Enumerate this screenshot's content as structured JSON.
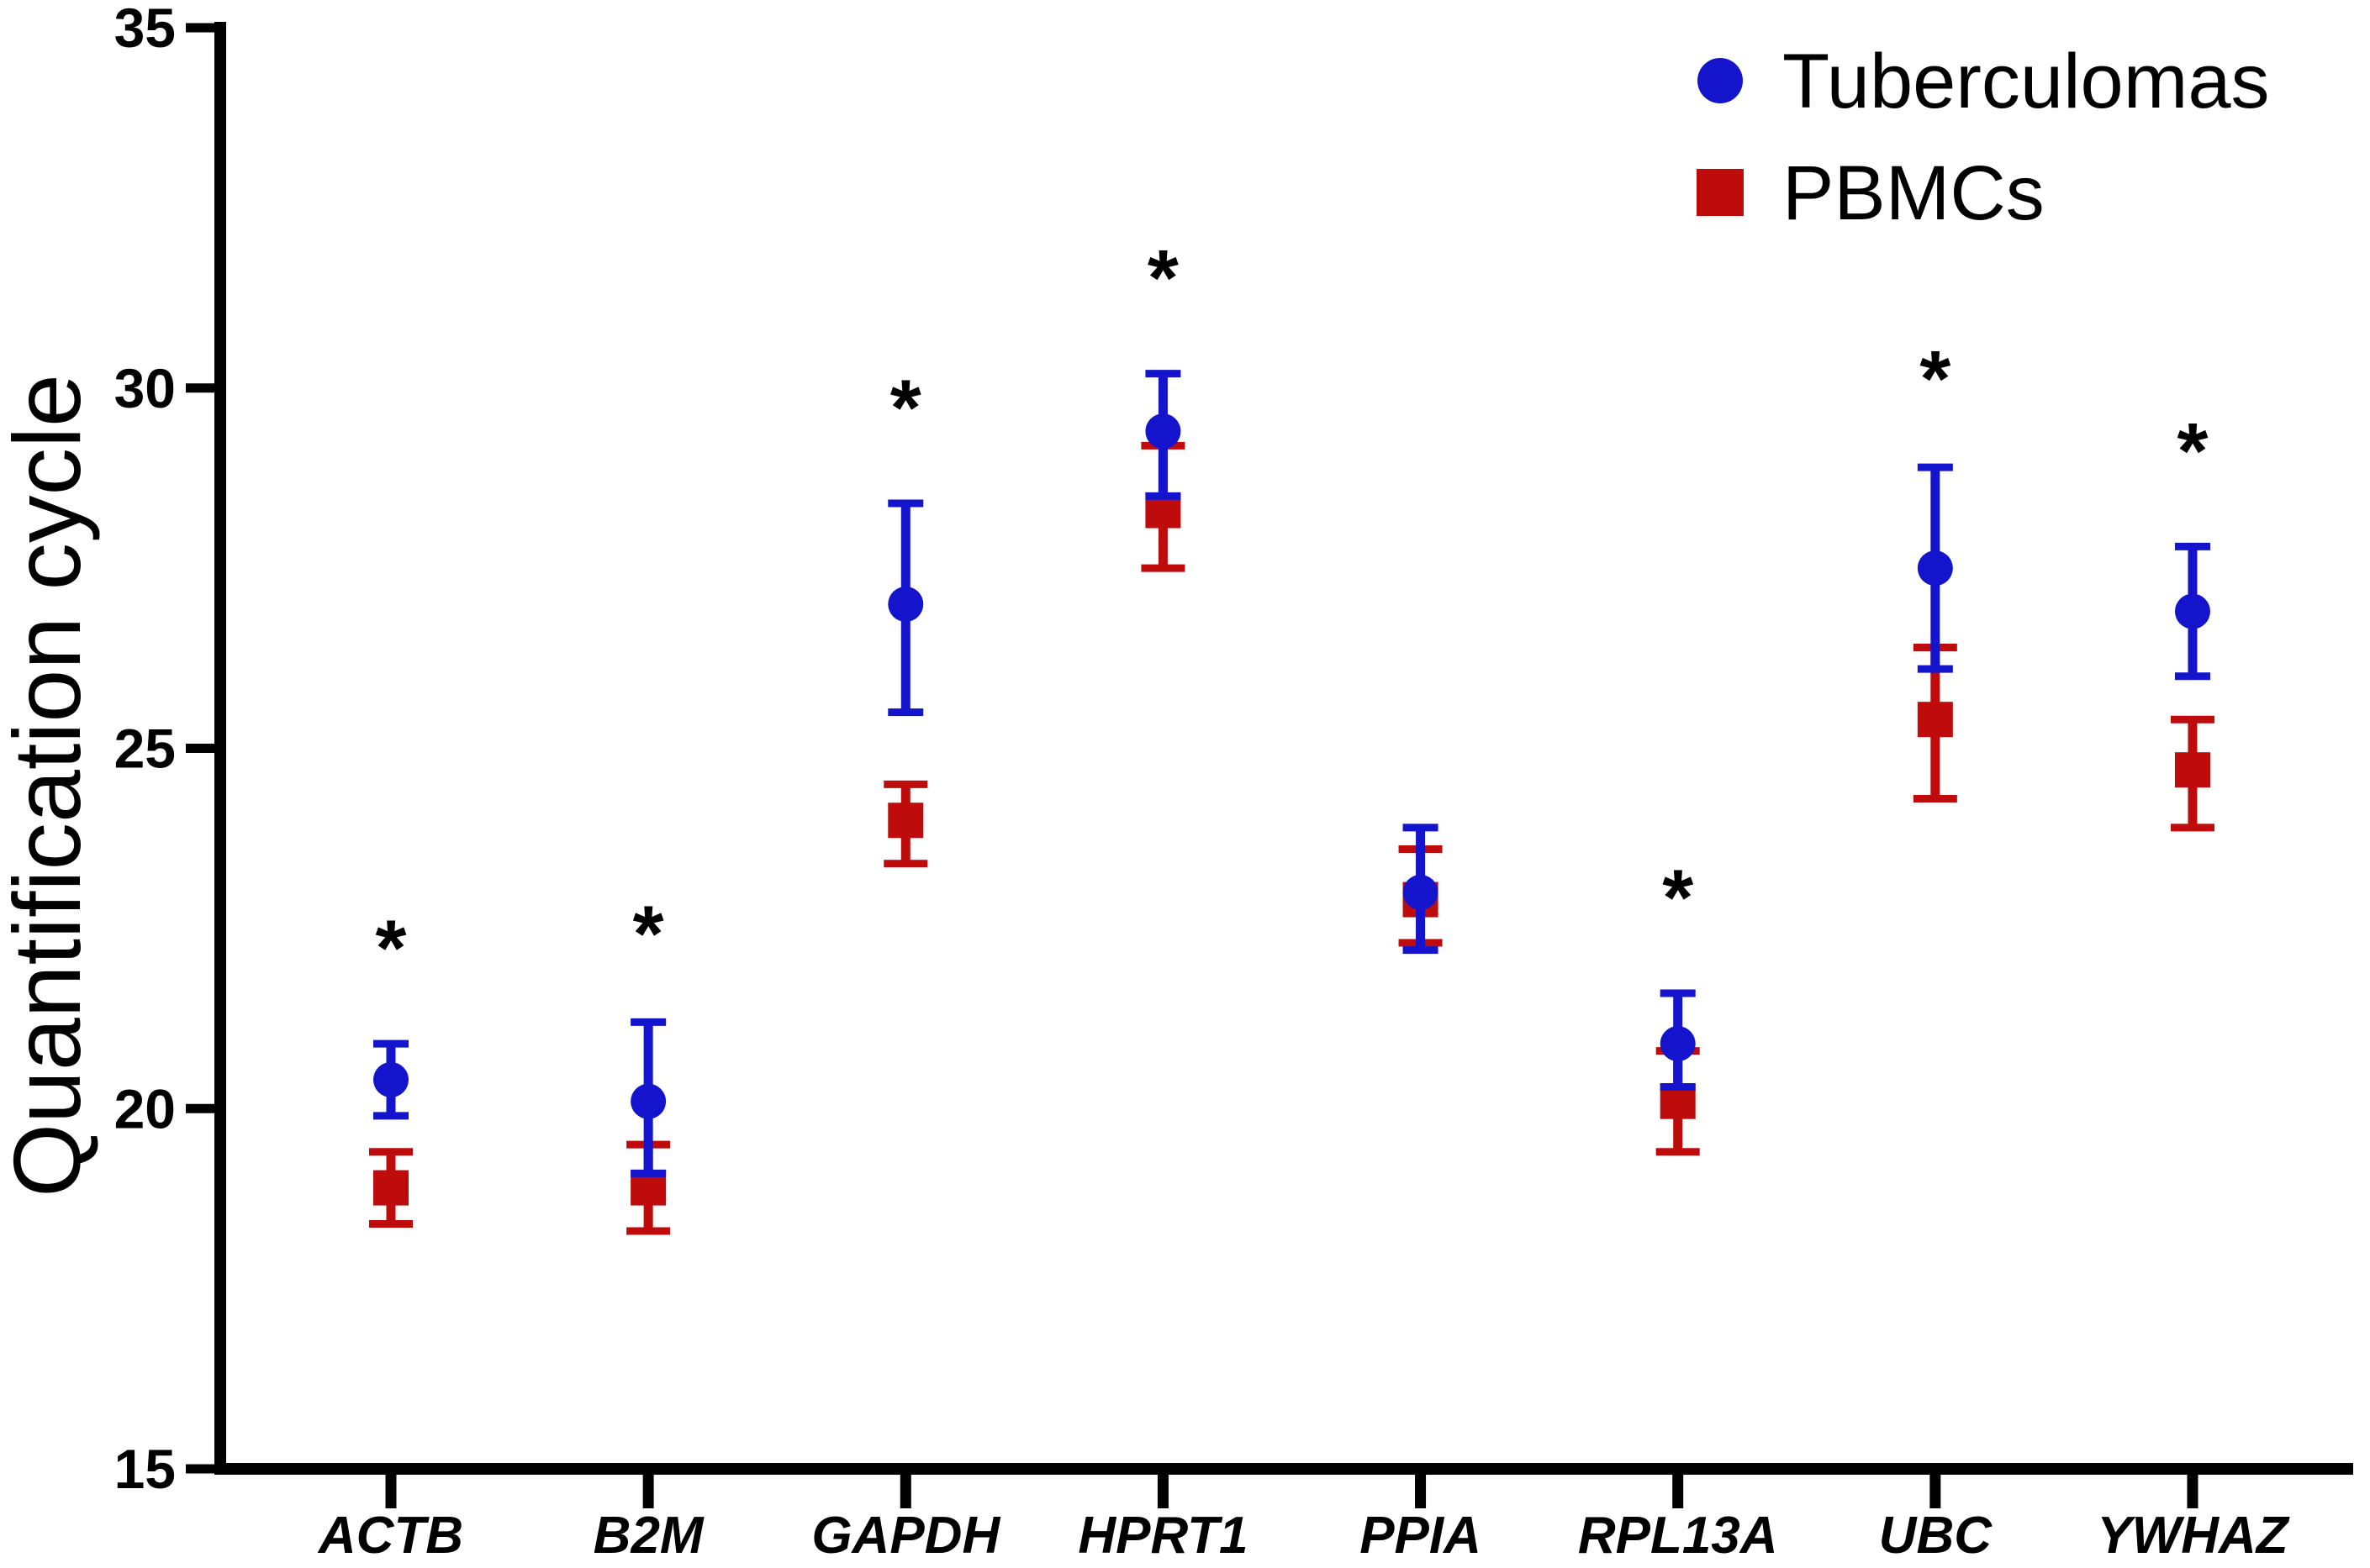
{
  "page": {
    "background": "#FFFFFF",
    "axis_color": "#000000"
  },
  "legend": {
    "position": "top-right",
    "items": [
      {
        "label": "Tuberculomas",
        "marker": "circle",
        "color": "#1414CC"
      },
      {
        "label": "PBMCs",
        "marker": "square",
        "color": "#BE0C0C"
      }
    ]
  },
  "chart_data": {
    "type": "scatter",
    "title": "",
    "xlabel": "",
    "ylabel": "Quantification cycle",
    "ylim": [
      15,
      35
    ],
    "yticks": [
      35,
      30,
      25,
      20,
      15
    ],
    "grid": false,
    "legend_position": "top-right",
    "categories": [
      "ACTB",
      "B2M",
      "GAPDH",
      "HPRT1",
      "PPIA",
      "RPL13A",
      "UBC",
      "YWHAZ"
    ],
    "series": [
      {
        "name": "Tuberculomas",
        "marker": "circle",
        "color": "#1414CC",
        "values": [
          20.4,
          20.1,
          27.0,
          29.4,
          23.0,
          20.9,
          27.5,
          26.9
        ],
        "err_upper": [
          20.9,
          21.2,
          28.4,
          30.2,
          23.9,
          21.6,
          28.9,
          27.8
        ],
        "err_lower": [
          19.9,
          19.1,
          25.5,
          28.5,
          22.2,
          20.3,
          26.1,
          26.0
        ]
      },
      {
        "name": "PBMCs",
        "marker": "square",
        "color": "#BE0C0C",
        "values": [
          18.9,
          18.9,
          24.0,
          28.3,
          22.9,
          20.1,
          25.4,
          24.7
        ],
        "err_upper": [
          19.4,
          19.5,
          24.5,
          29.2,
          23.6,
          20.8,
          26.4,
          25.4
        ],
        "err_lower": [
          18.4,
          18.3,
          23.4,
          27.5,
          22.3,
          19.4,
          24.3,
          23.9
        ]
      }
    ],
    "significance_symbol": "*",
    "significance_y": [
      22.4,
      22.6,
      29.9,
      31.7,
      null,
      23.1,
      30.3,
      29.3
    ]
  }
}
